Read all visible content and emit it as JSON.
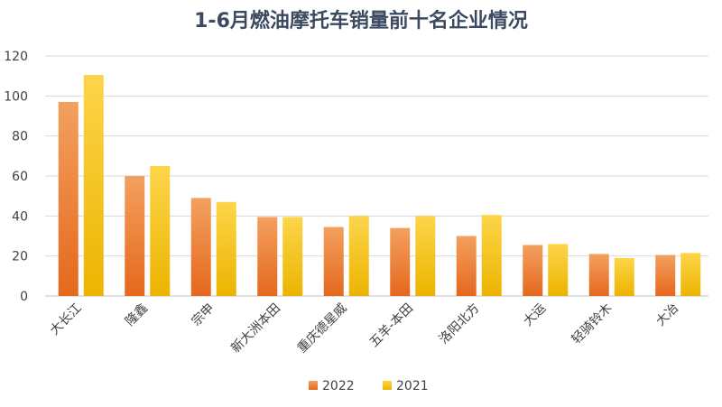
{
  "chart_data": {
    "type": "bar",
    "title": "1-6月燃油摩托车销量前十名企业情况",
    "xlabel": "",
    "ylabel": "",
    "ylim": [
      0,
      120
    ],
    "yticks": [
      0,
      20,
      40,
      60,
      80,
      100,
      120
    ],
    "grid": true,
    "legend_position": "bottom",
    "categories": [
      "大长江",
      "隆鑫",
      "宗申",
      "新大洲本田",
      "重庆德星威",
      "五羊-本田",
      "洛阳北方",
      "大运",
      "轻骑铃木",
      "大冶"
    ],
    "series": [
      {
        "name": "2022",
        "values": [
          97,
          60,
          49,
          39.5,
          34.5,
          34,
          30,
          25.5,
          21,
          20.5
        ]
      },
      {
        "name": "2021",
        "values": [
          110.5,
          65,
          47,
          39.5,
          40,
          40,
          40.5,
          26,
          19,
          21.5
        ]
      }
    ],
    "colors": {
      "series_2022_top": "#f3a05e",
      "series_2022_bottom": "#e5681d",
      "series_2021_top": "#fdd54a",
      "series_2021_bottom": "#ecb400",
      "grid": "#d9d9d9",
      "title": "#3b4a60"
    }
  }
}
